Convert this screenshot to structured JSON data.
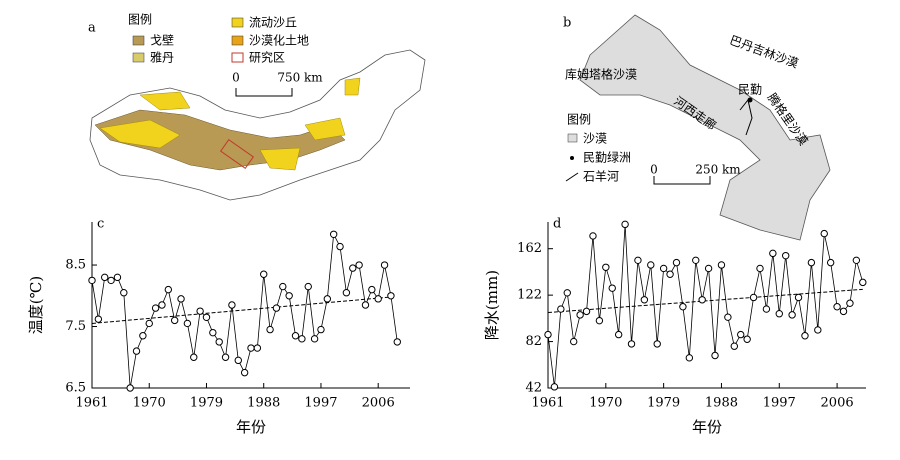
{
  "map_a": {
    "label": "a",
    "legend_title": "图例",
    "legend": [
      "戈壁",
      "雅丹",
      "流动沙丘",
      "沙漠化土地",
      "研究区"
    ],
    "scale": [
      "0",
      "750 km"
    ]
  },
  "map_b": {
    "label": "b",
    "places": [
      "巴丹吉林沙漠",
      "库姆塔格沙漠",
      "河西走廊",
      "民勤",
      "腾格里沙漠"
    ],
    "legend_title": "图例",
    "legend": [
      "沙漠",
      "民勤绿洲",
      "石羊河"
    ],
    "scale": [
      "0",
      "250 km"
    ]
  },
  "chart_data": [
    {
      "type": "line",
      "label": "c",
      "ylabel": "温度(℃)",
      "xlabel": "年份",
      "color": "#000",
      "x": [
        1961,
        1962,
        1963,
        1964,
        1965,
        1966,
        1967,
        1968,
        1969,
        1970,
        1971,
        1972,
        1973,
        1974,
        1975,
        1976,
        1977,
        1978,
        1979,
        1980,
        1981,
        1982,
        1983,
        1984,
        1985,
        1986,
        1987,
        1988,
        1989,
        1990,
        1991,
        1992,
        1993,
        1994,
        1995,
        1996,
        1997,
        1998,
        1999,
        2000,
        2001,
        2002,
        2003,
        2004,
        2005,
        2006,
        2007,
        2008,
        2009
      ],
      "values": [
        8.25,
        7.62,
        8.3,
        8.25,
        8.3,
        8.05,
        6.5,
        7.1,
        7.35,
        7.55,
        7.8,
        7.85,
        8.1,
        7.6,
        7.95,
        7.55,
        7.0,
        7.75,
        7.65,
        7.4,
        7.25,
        7.0,
        7.85,
        6.95,
        6.75,
        7.15,
        7.15,
        8.35,
        7.45,
        7.8,
        8.15,
        8.0,
        7.35,
        7.3,
        8.15,
        7.3,
        7.45,
        7.95,
        9.0,
        8.8,
        8.05,
        8.45,
        8.5,
        7.85,
        8.1,
        7.95,
        8.5,
        8.0,
        7.25
      ],
      "trend": {
        "x": [
          1961,
          2008
        ],
        "values": [
          7.55,
          7.98
        ]
      },
      "xlim": [
        1961,
        2011
      ],
      "xticks": [
        1961,
        1970,
        1979,
        1988,
        1997,
        2006
      ],
      "ylim": [
        6.5,
        9.2
      ],
      "yticks": [
        6.5,
        7.5,
        8.5
      ]
    },
    {
      "type": "line",
      "label": "d",
      "ylabel": "降水(mm)",
      "xlabel": "年份",
      "color": "#000",
      "x": [
        1961,
        1962,
        1963,
        1964,
        1965,
        1966,
        1967,
        1968,
        1969,
        1970,
        1971,
        1972,
        1973,
        1974,
        1975,
        1976,
        1977,
        1978,
        1979,
        1980,
        1981,
        1982,
        1983,
        1984,
        1985,
        1986,
        1987,
        1988,
        1989,
        1990,
        1991,
        1992,
        1993,
        1994,
        1995,
        1996,
        1997,
        1998,
        1999,
        2000,
        2001,
        2002,
        2003,
        2004,
        2005,
        2006,
        2007,
        2008,
        2009,
        2010
      ],
      "values": [
        88,
        43,
        110,
        124,
        82,
        105,
        108,
        173,
        100,
        146,
        128,
        88,
        183,
        80,
        152,
        118,
        148,
        80,
        145,
        140,
        150,
        112,
        68,
        152,
        118,
        145,
        70,
        148,
        103,
        78,
        88,
        84,
        120,
        145,
        110,
        158,
        106,
        156,
        105,
        120,
        87,
        150,
        92,
        175,
        150,
        112,
        108,
        115,
        152,
        133
      ],
      "trend": {
        "x": [
          1961,
          2010
        ],
        "values": [
          107,
          127
        ]
      },
      "xlim": [
        1961,
        2010.5
      ],
      "xticks": [
        1961,
        1970,
        1979,
        1988,
        1997,
        2006
      ],
      "ylim": [
        42,
        185
      ],
      "yticks": [
        42,
        82,
        122,
        162
      ]
    }
  ]
}
